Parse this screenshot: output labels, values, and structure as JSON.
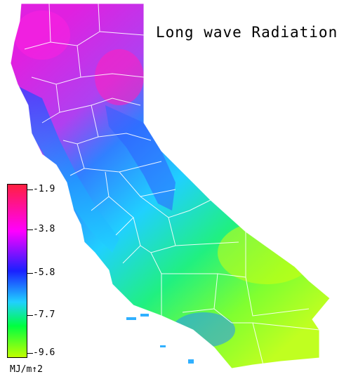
{
  "title": "Long wave Radiation",
  "colorbar": {
    "ticks": [
      "-1.9",
      "-3.8",
      "-5.8",
      "-7.7",
      "-9.6"
    ],
    "unit": "MJ/m↑2",
    "colors": [
      "#ff2040",
      "#ff00ff",
      "#1a20ff",
      "#20d0ff",
      "#00ff40",
      "#c0ff00"
    ]
  },
  "map": {
    "region": "California",
    "colors": {
      "north": "#e020e0",
      "coast": "#3080ff",
      "valley": "#20d0ff",
      "south": "#20f080",
      "desert": "#c0ff20",
      "boundary": "#ffffff"
    }
  }
}
